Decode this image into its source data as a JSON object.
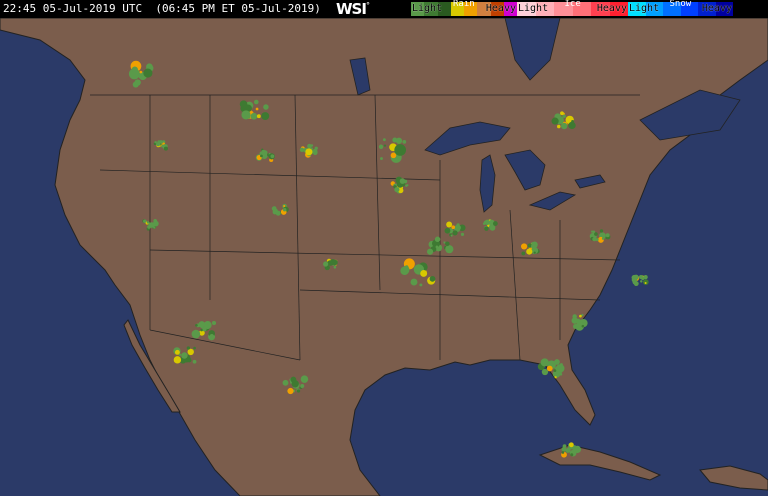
{
  "header": {
    "timestamp": "22:45 05-Jul-2019 UTC  (06:45 PM ET 05-Jul-2019)",
    "logo": "WSI"
  },
  "legend": [
    {
      "type": "Rain",
      "light": "Light",
      "heavy": "Heavy",
      "colors": [
        "#5a9a4a",
        "#3e7a32",
        "#2a5a20",
        "#d8c800",
        "#f0a000",
        "#d08040",
        "#c04000",
        "#d000d0"
      ]
    },
    {
      "type": "Ice",
      "light": "Light",
      "heavy": "Heavy",
      "colors": [
        "#ffd0d8",
        "#ffb0b8",
        "#ff9098",
        "#ff7078",
        "#ff4050",
        "#ff2030"
      ]
    },
    {
      "type": "Snow",
      "light": "Light",
      "heavy": "Heavy",
      "colors": [
        "#00e0ff",
        "#00a0ff",
        "#0070ff",
        "#0040ff",
        "#0020d0",
        "#0000a0"
      ]
    }
  ],
  "map": {
    "ocean_color": "#2b3a68",
    "land_color": "#7b5d4c",
    "border_color": "#1a1a1a",
    "region": "Continental United States"
  }
}
